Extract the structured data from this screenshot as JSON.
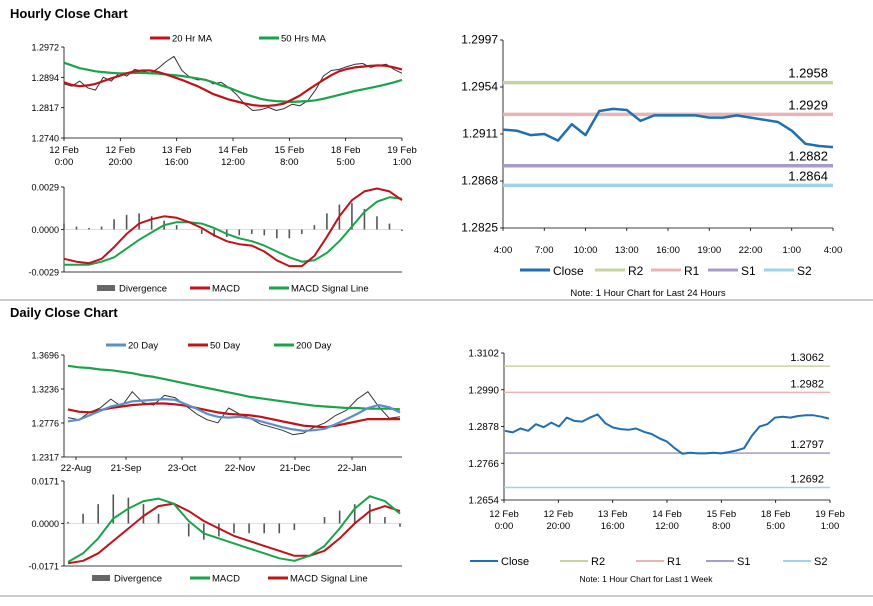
{
  "sections": {
    "hourly_title": "Hourly Close Chart",
    "daily_title": "Daily Close Chart"
  },
  "colors": {
    "red": "#c0121a",
    "green": "#1aa34a",
    "blue": "#1f6fb2",
    "steel": "#5b8fc7",
    "gray": "#555555",
    "r2": "#c5d4a0",
    "r1": "#e8b4b4",
    "s1": "#a99bc9",
    "s2": "#9fd4e6"
  },
  "chart_data": [
    {
      "id": "hourly_price",
      "type": "line",
      "legend": [
        "20 Hr MA",
        "50 Hrs MA"
      ],
      "ylim": [
        1.274,
        1.2972
      ],
      "yticks": [
        "1.2972",
        "1.2894",
        "1.2817",
        "1.2740"
      ],
      "xticks": [
        [
          "12 Feb",
          "0:00"
        ],
        [
          "12 Feb",
          "20:00"
        ],
        [
          "13 Feb",
          "16:00"
        ],
        [
          "14 Feb",
          "12:00"
        ],
        [
          "15 Feb",
          "8:00"
        ],
        [
          "18 Feb",
          "5:00"
        ],
        [
          "19 Feb",
          "1:00"
        ]
      ],
      "close": [
        1.2878,
        1.2872,
        1.2885,
        1.2868,
        1.2862,
        1.2895,
        1.2885,
        1.2905,
        1.2898,
        1.2915,
        1.291,
        1.2905,
        1.2918,
        1.2935,
        1.2948,
        1.2912,
        1.2895,
        1.2888,
        1.289,
        1.2878,
        1.2882,
        1.2868,
        1.285,
        1.2826,
        1.281,
        1.2812,
        1.2818,
        1.281,
        1.2815,
        1.2826,
        1.2822,
        1.2835,
        1.2862,
        1.2898,
        1.2912,
        1.2915,
        1.2922,
        1.2928,
        1.293,
        1.292,
        1.2925,
        1.2928,
        1.2915,
        1.2905
      ],
      "ma20": [
        1.2882,
        1.2875,
        1.2872,
        1.2874,
        1.2878,
        1.2885,
        1.2892,
        1.2898,
        1.2905,
        1.291,
        1.2912,
        1.2912,
        1.2908,
        1.2902,
        1.2895,
        1.2888,
        1.288,
        1.2872,
        1.2862,
        1.2852,
        1.2845,
        1.2838,
        1.2833,
        1.2828,
        1.2824,
        1.2822,
        1.2822,
        1.2824,
        1.2828,
        1.2838,
        1.2848,
        1.2862,
        1.2875,
        1.2888,
        1.29,
        1.291,
        1.2916,
        1.292,
        1.2922,
        1.2924,
        1.2925,
        1.2924,
        1.292,
        1.2915
      ],
      "ma50": [
        1.2932,
        1.2925,
        1.2918,
        1.2914,
        1.291,
        1.2908,
        1.2906,
        1.2905,
        1.2905,
        1.2906,
        1.2906,
        1.2905,
        1.2904,
        1.2902,
        1.29,
        1.2898,
        1.2895,
        1.2892,
        1.2888,
        1.2882,
        1.2874,
        1.2868,
        1.286,
        1.2852,
        1.2846,
        1.284,
        1.2836,
        1.2834,
        1.2833,
        1.2832,
        1.2833,
        1.2834,
        1.2836,
        1.284,
        1.2845,
        1.285,
        1.2855,
        1.286,
        1.2864,
        1.2868,
        1.2872,
        1.2877,
        1.2882,
        1.2888
      ]
    },
    {
      "id": "hourly_macd",
      "type": "line",
      "legend": [
        "Divergence",
        "MACD",
        "MACD Signal Line"
      ],
      "ylim": [
        -0.0029,
        0.0029
      ],
      "yticks": [
        "0.0029",
        "0.0000",
        "-0.0029"
      ],
      "macd": [
        -0.002,
        -0.0022,
        -0.0023,
        -0.002,
        -0.0012,
        -0.0003,
        0.0004,
        0.0007,
        0.0009,
        0.0008,
        0.0005,
        0.0001,
        -0.0004,
        -0.0008,
        -0.001,
        -0.0011,
        -0.0015,
        -0.0021,
        -0.0025,
        -0.0025,
        -0.0018,
        -0.0005,
        0.0009,
        0.002,
        0.0026,
        0.0028,
        0.0026,
        0.002
      ],
      "signal": [
        -0.0024,
        -0.0024,
        -0.0024,
        -0.0022,
        -0.0019,
        -0.0013,
        -0.0007,
        -0.0002,
        0.0003,
        0.0005,
        0.0005,
        0.0004,
        0.0001,
        -0.0003,
        -0.0006,
        -0.0008,
        -0.0011,
        -0.0015,
        -0.0019,
        -0.0022,
        -0.0021,
        -0.0016,
        -0.0008,
        0.0002,
        0.0012,
        0.0019,
        0.0022,
        0.0021
      ]
    },
    {
      "id": "hourly_levels",
      "type": "line",
      "ylim": [
        1.2825,
        1.2997
      ],
      "yticks": [
        "1.2997",
        "1.2954",
        "1.2911",
        "1.2868",
        "1.2825"
      ],
      "xticks": [
        "4:00",
        "7:00",
        "10:00",
        "13:00",
        "16:00",
        "19:00",
        "22:00",
        "1:00",
        "4:00"
      ],
      "levels": {
        "R2": 1.2958,
        "R1": 1.2929,
        "S1": 1.2882,
        "S2": 1.2864
      },
      "level_labels": {
        "R2": "1.2958",
        "R1": "1.2929",
        "S1": "1.2882",
        "S2": "1.2864"
      },
      "close": [
        1.2915,
        1.2914,
        1.291,
        1.2911,
        1.2905,
        1.292,
        1.291,
        1.2932,
        1.2934,
        1.2933,
        1.2923,
        1.2928,
        1.2928,
        1.2928,
        1.2928,
        1.2926,
        1.2926,
        1.2928,
        1.2926,
        1.2924,
        1.2922,
        1.2914,
        1.2902,
        1.29,
        1.2899
      ],
      "legend": [
        "Close",
        "R2",
        "R1",
        "S1",
        "S2"
      ],
      "note": "Note: 1 Hour Chart for Last 24 Hours"
    },
    {
      "id": "daily_price",
      "type": "line",
      "legend": [
        "20 Day",
        "50 Day",
        "200 Day"
      ],
      "ylim": [
        1.2317,
        1.3696
      ],
      "yticks": [
        "1.3696",
        "1.3236",
        "1.2776",
        "1.2317"
      ],
      "xticks": [
        "22-Aug",
        "21-Sep",
        "23-Oct",
        "22-Nov",
        "21-Dec",
        "22-Jan"
      ],
      "close": [
        1.285,
        1.282,
        1.292,
        1.298,
        1.31,
        1.3,
        1.32,
        1.305,
        1.302,
        1.315,
        1.312,
        1.301,
        1.29,
        1.282,
        1.278,
        1.298,
        1.29,
        1.284,
        1.276,
        1.272,
        1.268,
        1.262,
        1.264,
        1.272,
        1.278,
        1.288,
        1.295,
        1.31,
        1.32,
        1.3,
        1.284,
        1.286
      ],
      "ma20": [
        1.28,
        1.282,
        1.288,
        1.294,
        1.3,
        1.303,
        1.307,
        1.308,
        1.309,
        1.31,
        1.309,
        1.303,
        1.297,
        1.29,
        1.286,
        1.285,
        1.286,
        1.284,
        1.28,
        1.276,
        1.272,
        1.269,
        1.267,
        1.268,
        1.27,
        1.276,
        1.283,
        1.29,
        1.298,
        1.302,
        1.299,
        1.292
      ],
      "ma50": [
        1.296,
        1.293,
        1.292,
        1.295,
        1.298,
        1.3,
        1.302,
        1.303,
        1.304,
        1.304,
        1.303,
        1.301,
        1.298,
        1.295,
        1.292,
        1.29,
        1.289,
        1.288,
        1.286,
        1.283,
        1.28,
        1.277,
        1.274,
        1.273,
        1.272,
        1.274,
        1.277,
        1.28,
        1.283,
        1.283,
        1.283,
        1.283
      ],
      "ma200": [
        1.355,
        1.353,
        1.352,
        1.35,
        1.349,
        1.347,
        1.345,
        1.342,
        1.34,
        1.337,
        1.334,
        1.331,
        1.328,
        1.325,
        1.322,
        1.319,
        1.316,
        1.313,
        1.311,
        1.309,
        1.307,
        1.305,
        1.303,
        1.301,
        1.3,
        1.299,
        1.298,
        1.298,
        1.297,
        1.297,
        1.297,
        1.296
      ]
    },
    {
      "id": "daily_macd",
      "type": "line",
      "legend": [
        "Divergence",
        "MACD",
        "MACD Signal Line"
      ],
      "ylim": [
        -0.0171,
        0.0171
      ],
      "yticks": [
        "0.0171",
        "0.0000",
        "-0.0171"
      ],
      "macd": [
        -0.0155,
        -0.012,
        -0.006,
        0.002,
        0.006,
        0.009,
        0.01,
        0.008,
        0.001,
        -0.004,
        -0.006,
        -0.008,
        -0.01,
        -0.012,
        -0.014,
        -0.015,
        -0.013,
        -0.009,
        -0.002,
        0.006,
        0.011,
        0.009,
        0.004
      ],
      "signal": [
        -0.016,
        -0.015,
        -0.012,
        -0.007,
        -0.002,
        0.003,
        0.007,
        0.008,
        0.005,
        0.001,
        -0.002,
        -0.005,
        -0.007,
        -0.009,
        -0.011,
        -0.013,
        -0.013,
        -0.011,
        -0.006,
        0.0,
        0.005,
        0.007,
        0.005
      ]
    },
    {
      "id": "daily_levels",
      "type": "line",
      "ylim": [
        1.2654,
        1.3102
      ],
      "yticks": [
        "1.3102",
        "1.2990",
        "1.2878",
        "1.2766",
        "1.2654"
      ],
      "xticks": [
        [
          "12 Feb",
          "0:00"
        ],
        [
          "12 Feb",
          "20:00"
        ],
        [
          "13 Feb",
          "16:00"
        ],
        [
          "14 Feb",
          "12:00"
        ],
        [
          "15 Feb",
          "8:00"
        ],
        [
          "18 Feb",
          "5:00"
        ],
        [
          "19 Feb",
          "1:00"
        ]
      ],
      "levels": {
        "R2": 1.3062,
        "R1": 1.2982,
        "S1": 1.2797,
        "S2": 1.2692
      },
      "level_labels": {
        "R2": "1.3062",
        "R1": "1.2982",
        "S1": "1.2797",
        "S2": "1.2692"
      },
      "close": [
        1.2865,
        1.286,
        1.2872,
        1.2865,
        1.2885,
        1.2876,
        1.289,
        1.2878,
        1.2905,
        1.2895,
        1.2893,
        1.2905,
        1.2915,
        1.2888,
        1.2875,
        1.287,
        1.2868,
        1.2872,
        1.2862,
        1.2855,
        1.2842,
        1.2832,
        1.2812,
        1.2795,
        1.2798,
        1.2796,
        1.2796,
        1.2798,
        1.2796,
        1.28,
        1.2805,
        1.2812,
        1.285,
        1.2878,
        1.2885,
        1.2905,
        1.2908,
        1.2905,
        1.291,
        1.2912,
        1.2912,
        1.2908,
        1.2902
      ],
      "legend": [
        "Close",
        "R2",
        "R1",
        "S1",
        "S2"
      ],
      "note": "Note: 1 Hour Chart for Last 1 Week"
    }
  ]
}
